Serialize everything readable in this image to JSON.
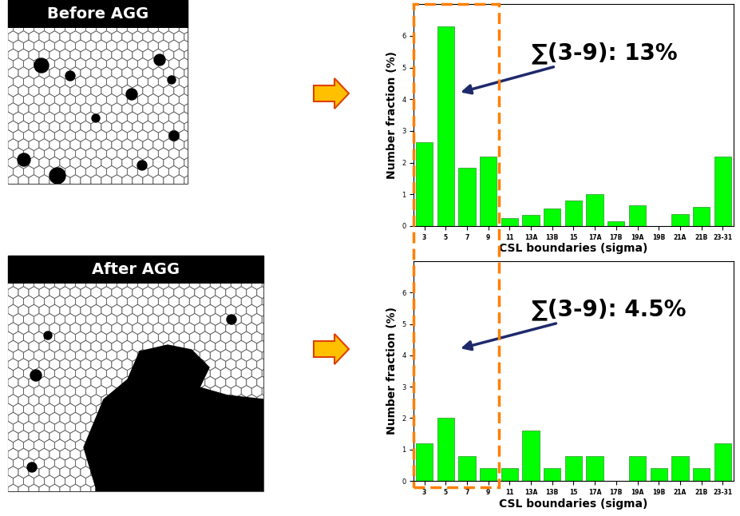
{
  "images": [
    "Before AGG",
    "After AGG"
  ],
  "chart_data": [
    {
      "type": "bar",
      "categories": [
        "3",
        "5",
        "7",
        "9",
        "11",
        "13A",
        "13B",
        "15",
        "17A",
        "17B",
        "19A",
        "19B",
        "21A",
        "21B",
        "23-31"
      ],
      "values": [
        2.65,
        6.3,
        1.85,
        2.2,
        0.25,
        0.35,
        0.55,
        0.8,
        1.0,
        0.15,
        0.65,
        0,
        0.38,
        0.6,
        2.2
      ],
      "color": "#00ff00",
      "ylim": [
        0,
        7
      ],
      "yticks": [
        0,
        1,
        2,
        3,
        4,
        5,
        6
      ],
      "x_label": "CSL boundaries (sigma)",
      "y_label": "Number fraction (%)",
      "annotation": "∑(3-9): 13%"
    },
    {
      "type": "bar",
      "categories": [
        "3",
        "5",
        "7",
        "9",
        "11",
        "13A",
        "13B",
        "15",
        "17A",
        "17B",
        "19A",
        "19B",
        "21A",
        "21B",
        "23-31"
      ],
      "values": [
        1.2,
        2.0,
        0.8,
        0.4,
        0.4,
        1.6,
        0.4,
        0.8,
        0.8,
        0,
        0.8,
        0.4,
        0.8,
        0.4,
        1.2
      ],
      "color": "#00ff00",
      "ylim": [
        0,
        7
      ],
      "yticks": [
        0,
        1,
        2,
        3,
        4,
        5,
        6
      ],
      "x_label": "CSL boundaries (sigma)",
      "y_label": "Number fraction (%)",
      "annotation": "∑(3-9): 4.5%"
    }
  ]
}
